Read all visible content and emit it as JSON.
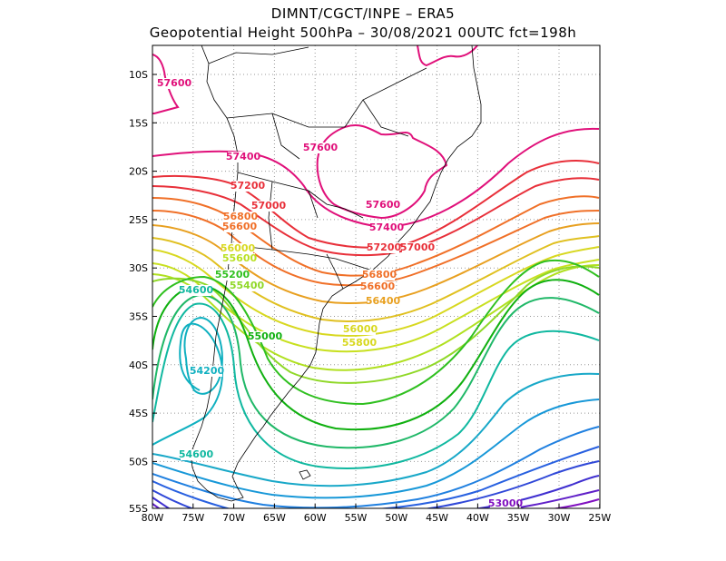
{
  "header": {
    "line1": "DIMNT/CGCT/INPE –  ERA5",
    "line2": "Geopotential Height 500hPa –  30/08/2021 00UTC fct=198h"
  },
  "axes": {
    "lon_ticks": [
      "80W",
      "75W",
      "70W",
      "65W",
      "60W",
      "55W",
      "50W",
      "45W",
      "40W",
      "35W",
      "30W",
      "25W"
    ],
    "lat_ticks": [
      "10S",
      "15S",
      "20S",
      "25S",
      "30S",
      "35S",
      "40S",
      "45S",
      "50S",
      "55S"
    ]
  },
  "contours": {
    "labels": [
      {
        "text": "57600",
        "color": "#e0107a"
      },
      {
        "text": "57600",
        "color": "#e0107a"
      },
      {
        "text": "57600",
        "color": "#e0107a"
      },
      {
        "text": "57400",
        "color": "#e0107a"
      },
      {
        "text": "57400",
        "color": "#e0107a"
      },
      {
        "text": "57200",
        "color": "#e8303a"
      },
      {
        "text": "57000",
        "color": "#e8303a"
      },
      {
        "text": "57200",
        "color": "#e8303a"
      },
      {
        "text": "57000",
        "color": "#e8303a"
      },
      {
        "text": "56800",
        "color": "#f07028"
      },
      {
        "text": "56600",
        "color": "#f07028"
      },
      {
        "text": "56800",
        "color": "#f07028"
      },
      {
        "text": "56600",
        "color": "#f07028"
      },
      {
        "text": "56400",
        "color": "#e8a020"
      },
      {
        "text": "56000",
        "color": "#d8d820"
      },
      {
        "text": "55800",
        "color": "#d8d820"
      },
      {
        "text": "56000",
        "color": "#d8d820"
      },
      {
        "text": "55600",
        "color": "#b8e020"
      },
      {
        "text": "55400",
        "color": "#90d828"
      },
      {
        "text": "55200",
        "color": "#30c020"
      },
      {
        "text": "55000",
        "color": "#10b010"
      },
      {
        "text": "54600",
        "color": "#10b8a0"
      },
      {
        "text": "54600",
        "color": "#10b8a0"
      },
      {
        "text": "54200",
        "color": "#10b0c0"
      },
      {
        "text": "53000",
        "color": "#8010c0"
      }
    ]
  },
  "colors": {
    "grid": "#999999",
    "coast": "#000000",
    "background": "#ffffff"
  }
}
